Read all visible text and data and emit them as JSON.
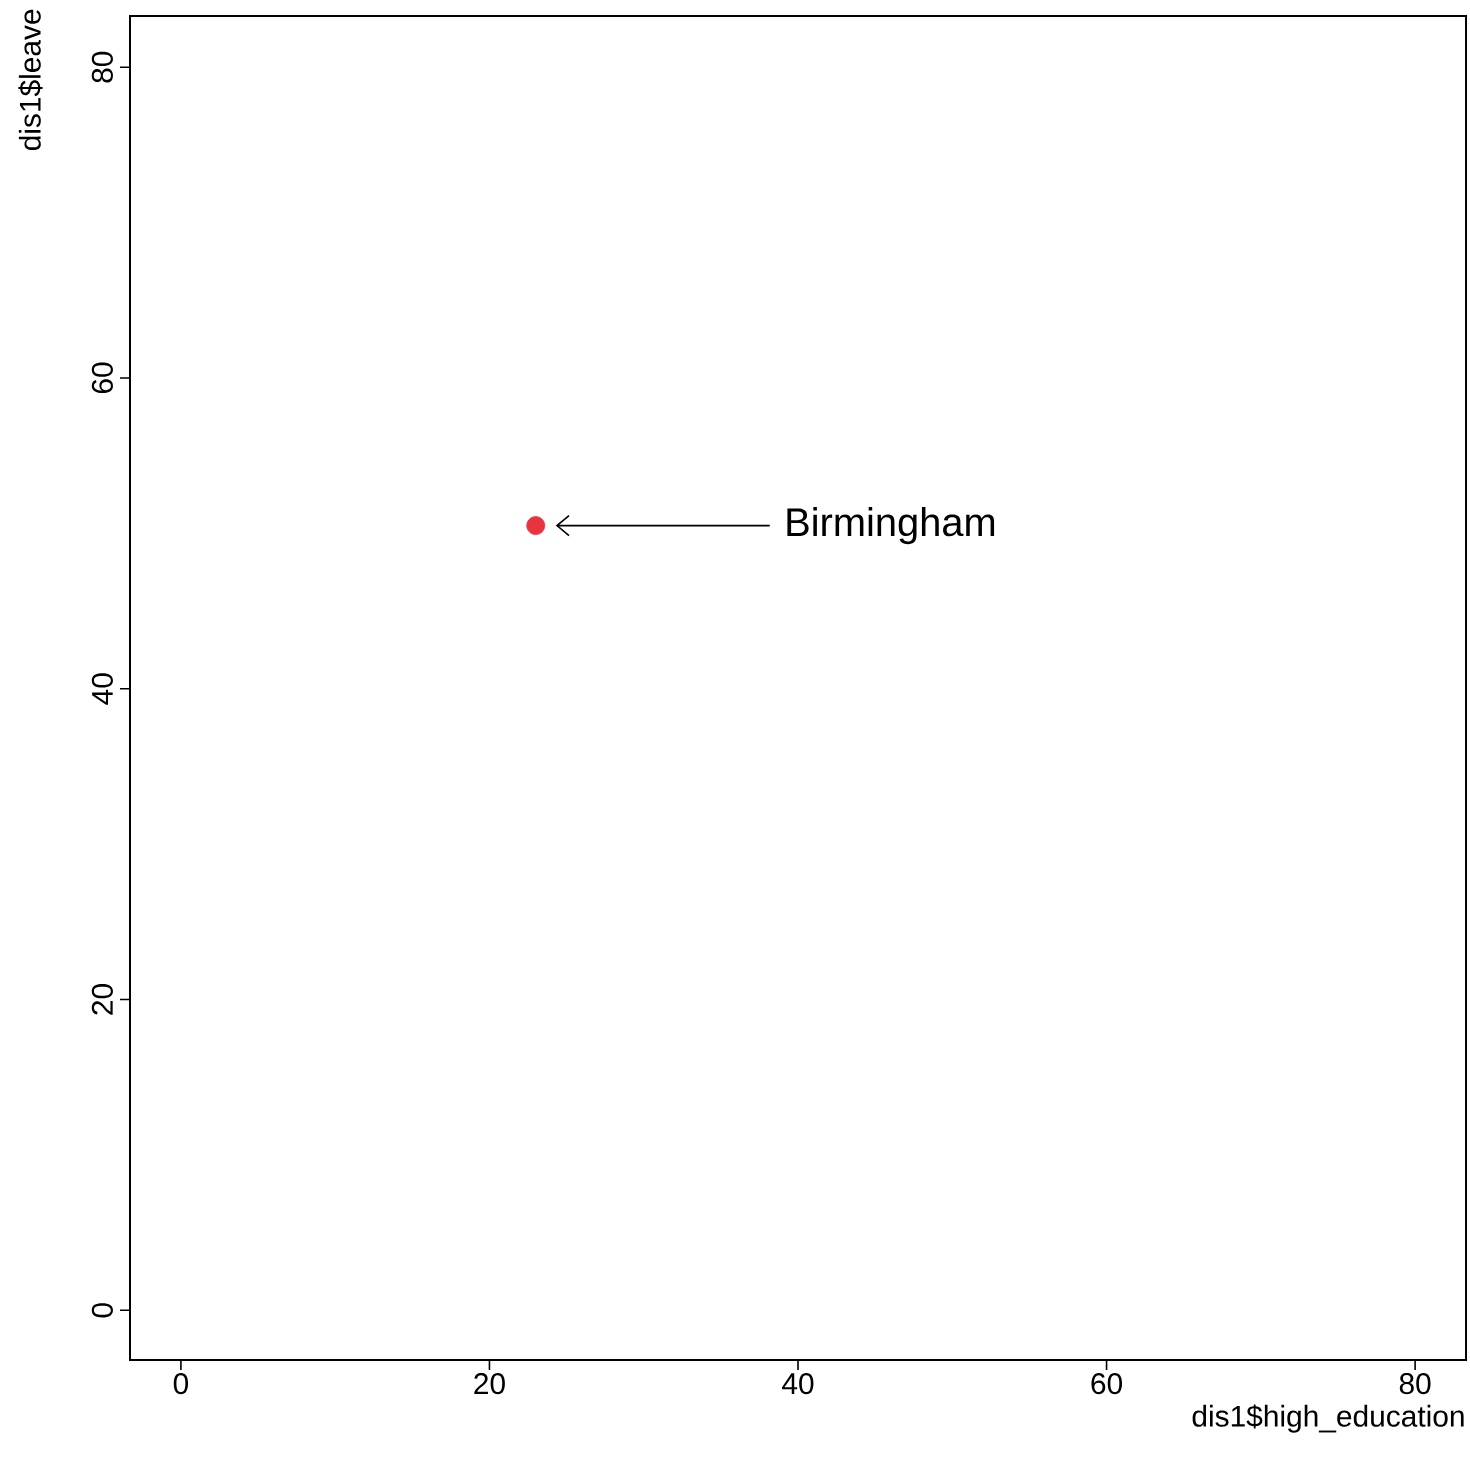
{
  "chart_data": {
    "type": "scatter",
    "xlabel": "dis1$high_education",
    "ylabel": "dis1$leave",
    "x": [
      23.0
    ],
    "values": [
      50.5
    ],
    "color": "#e8343f",
    "xlim": [
      -3.3,
      83.3
    ],
    "ylim": [
      -3.2,
      83.3
    ],
    "xticks": [
      0,
      20,
      40,
      60,
      80
    ],
    "yticks": [
      0,
      20,
      40,
      60,
      80
    ],
    "annotations": [
      "Birmingham"
    ]
  }
}
